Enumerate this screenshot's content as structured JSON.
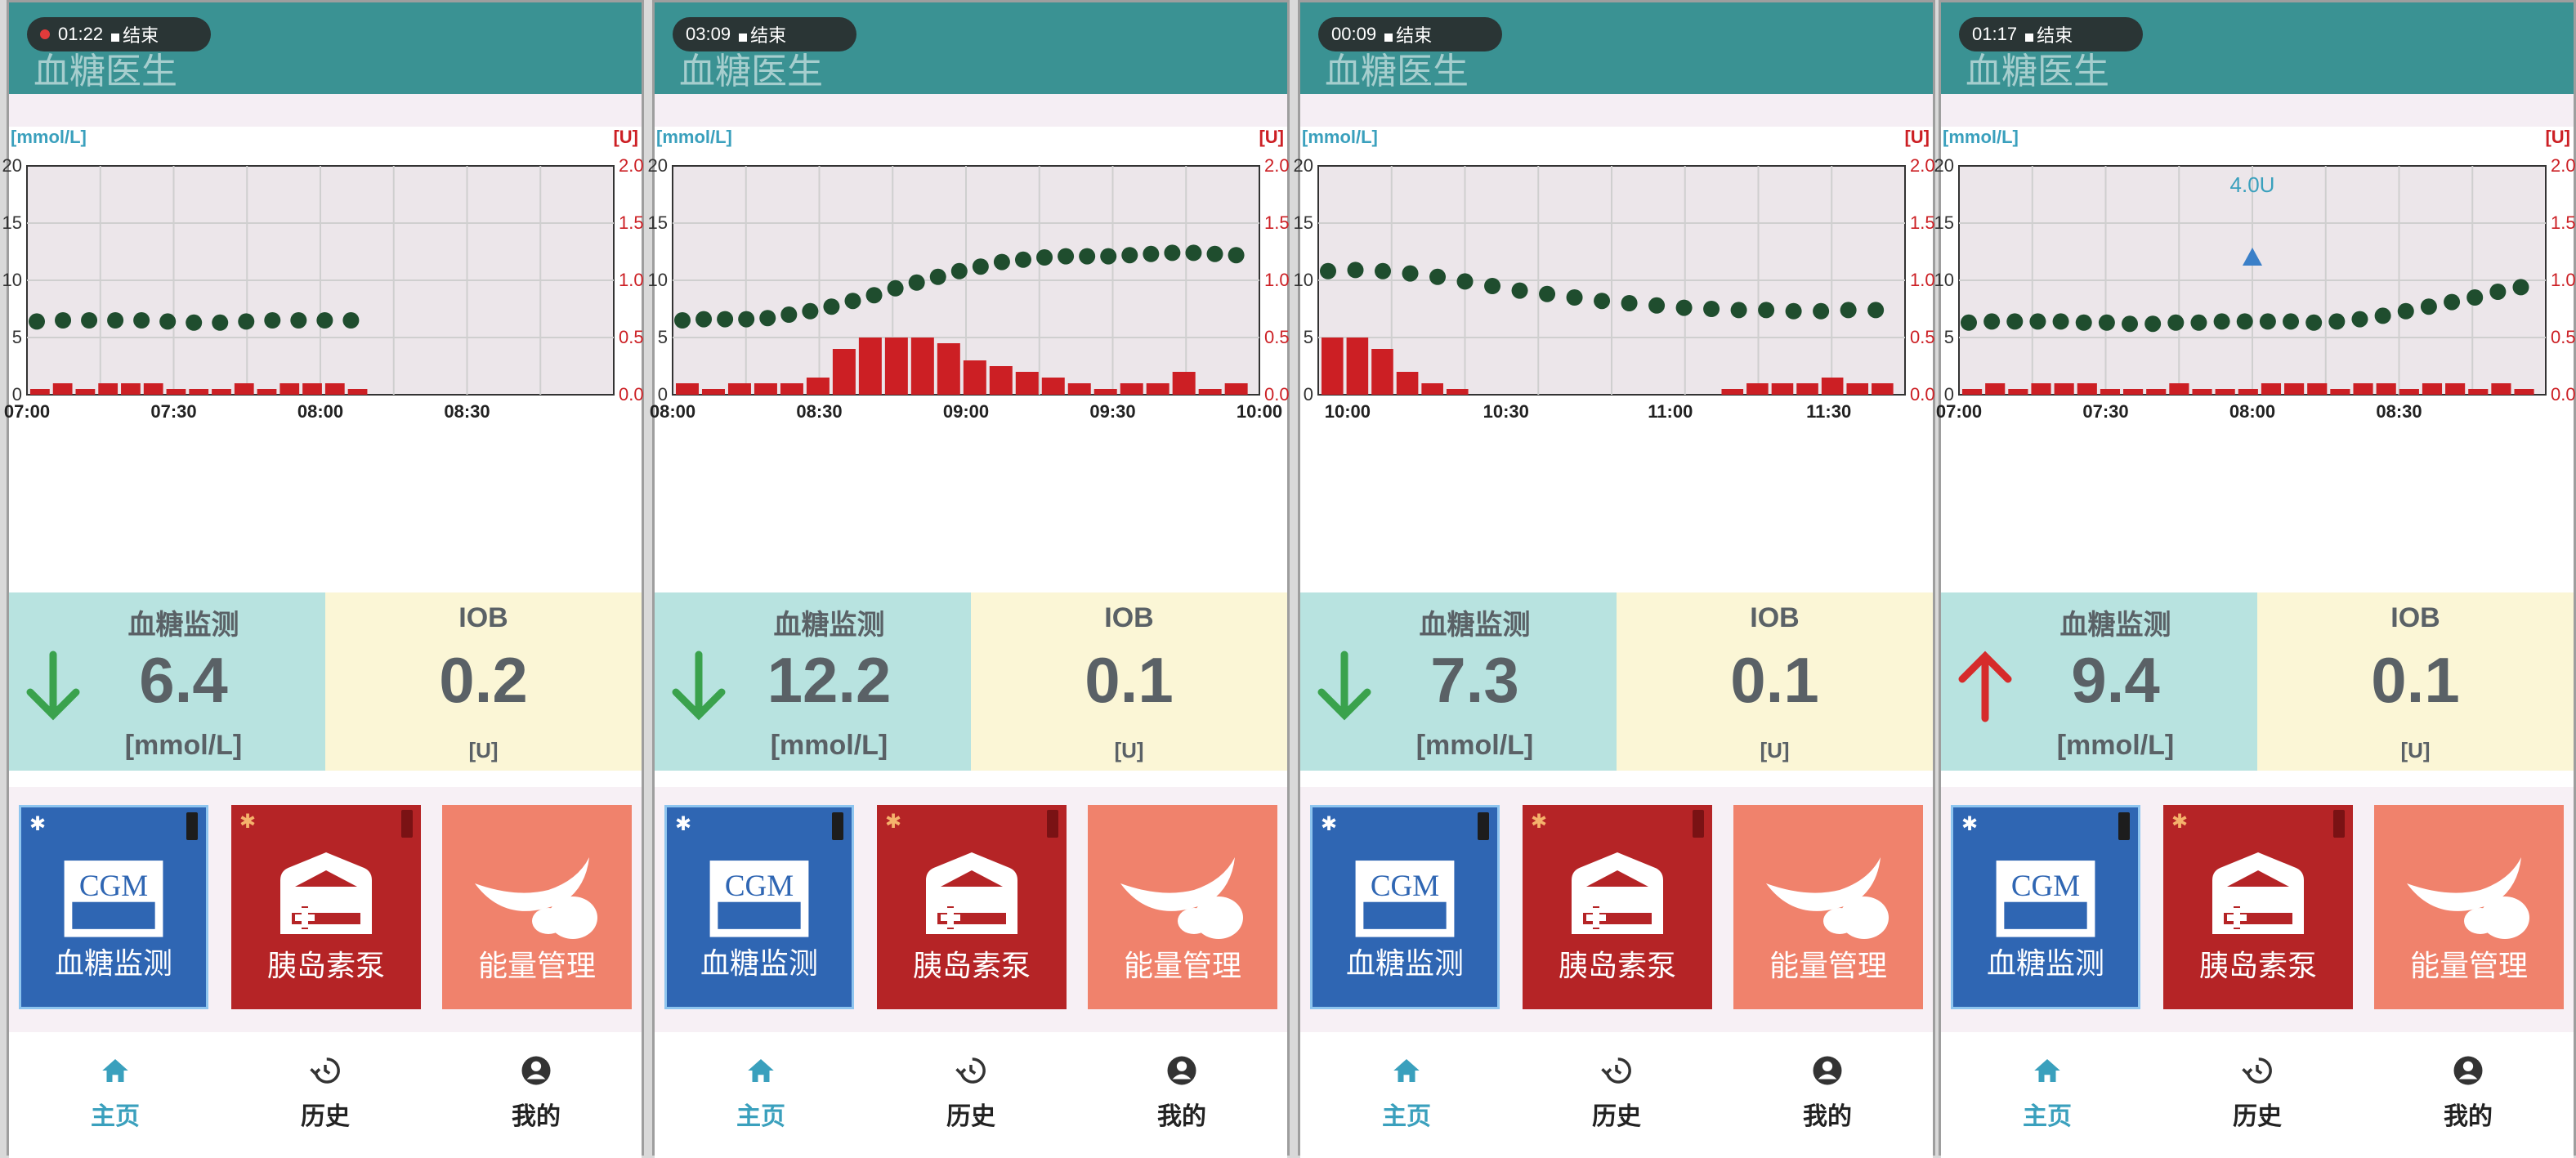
{
  "panels": [
    {
      "rec_time": "01:22",
      "rec_end": "结束",
      "rec_dot": true,
      "app_title": "血糖医生",
      "chart": {
        "left_unit": "[mmol/L]",
        "right_unit": "[U]",
        "x_ticks": [
          "07:00",
          "07:30",
          "08:00",
          "08:30"
        ],
        "x_tick_pos": [
          0,
          0.25,
          0.5,
          0.75
        ],
        "glucose": [
          6.4,
          6.5,
          6.5,
          6.5,
          6.5,
          6.4,
          6.3,
          6.3,
          6.4,
          6.5,
          6.5,
          6.5,
          6.5
        ],
        "insulin": [
          0.05,
          0.1,
          0.05,
          0.1,
          0.1,
          0.1,
          0.05,
          0.05,
          0.05,
          0.1,
          0.05,
          0.1,
          0.1,
          0.1,
          0.05
        ],
        "annotation": null
      },
      "info": {
        "title": "血糖监测",
        "value": "6.4",
        "unit": "[mmol/L]",
        "trend": "down",
        "iob_title": "IOB",
        "iob_value": "0.2",
        "iob_unit": "[U]"
      }
    },
    {
      "rec_time": "03:09",
      "rec_end": "结束",
      "rec_dot": false,
      "app_title": "血糖医生",
      "chart": {
        "left_unit": "[mmol/L]",
        "right_unit": "[U]",
        "x_ticks": [
          "08:00",
          "08:30",
          "09:00",
          "09:30",
          "10:00"
        ],
        "x_tick_pos": [
          0,
          0.25,
          0.5,
          0.75,
          1
        ],
        "glucose": [
          6.5,
          6.6,
          6.6,
          6.6,
          6.7,
          7.0,
          7.3,
          7.7,
          8.2,
          8.7,
          9.3,
          9.8,
          10.3,
          10.8,
          11.2,
          11.6,
          11.8,
          12.0,
          12.1,
          12.1,
          12.1,
          12.2,
          12.3,
          12.4,
          12.4,
          12.3,
          12.2
        ],
        "insulin": [
          0.1,
          0.05,
          0.1,
          0.1,
          0.1,
          0.15,
          0.4,
          0.5,
          0.5,
          0.5,
          0.45,
          0.3,
          0.25,
          0.2,
          0.15,
          0.1,
          0.05,
          0.1,
          0.1,
          0.2,
          0.05,
          0.1
        ],
        "annotation": null
      },
      "info": {
        "title": "血糖监测",
        "value": "12.2",
        "unit": "[mmol/L]",
        "trend": "down",
        "iob_title": "IOB",
        "iob_value": "0.1",
        "iob_unit": "[U]"
      }
    },
    {
      "rec_time": "00:09",
      "rec_end": "结束",
      "rec_dot": false,
      "app_title": "血糖医生",
      "chart": {
        "left_unit": "[mmol/L]",
        "right_unit": "[U]",
        "x_ticks": [
          "10:00",
          "10:30",
          "11:00",
          "11:30"
        ],
        "x_tick_pos": [
          0.05,
          0.32,
          0.6,
          0.87
        ],
        "glucose": [
          10.8,
          10.9,
          10.8,
          10.6,
          10.3,
          9.9,
          9.5,
          9.1,
          8.8,
          8.5,
          8.2,
          8.0,
          7.8,
          7.6,
          7.5,
          7.4,
          7.4,
          7.3,
          7.3,
          7.4,
          7.4
        ],
        "insulin": [
          0.5,
          0.5,
          0.4,
          0.2,
          0.1,
          0.05,
          0,
          0,
          0,
          0,
          0,
          0,
          0,
          0,
          0,
          0,
          0.05,
          0.1,
          0.1,
          0.1,
          0.15,
          0.1,
          0.1
        ],
        "annotation": null
      },
      "info": {
        "title": "血糖监测",
        "value": "7.3",
        "unit": "[mmol/L]",
        "trend": "down",
        "iob_title": "IOB",
        "iob_value": "0.1",
        "iob_unit": "[U]"
      }
    },
    {
      "rec_time": "01:17",
      "rec_end": "结束",
      "rec_dot": false,
      "app_title": "血糖医生",
      "chart": {
        "left_unit": "[mmol/L]",
        "right_unit": "[U]",
        "x_ticks": [
          "07:00",
          "07:30",
          "08:00",
          "08:30"
        ],
        "x_tick_pos": [
          0,
          0.25,
          0.5,
          0.75
        ],
        "glucose": [
          6.3,
          6.4,
          6.4,
          6.4,
          6.4,
          6.3,
          6.3,
          6.2,
          6.2,
          6.3,
          6.3,
          6.4,
          6.4,
          6.4,
          6.4,
          6.3,
          6.4,
          6.6,
          6.9,
          7.3,
          7.7,
          8.1,
          8.5,
          9.0,
          9.4
        ],
        "insulin": [
          0.05,
          0.1,
          0.05,
          0.1,
          0.1,
          0.1,
          0.05,
          0.05,
          0.05,
          0.1,
          0.05,
          0.05,
          0.05,
          0.1,
          0.1,
          0.1,
          0.05,
          0.1,
          0.1,
          0.05,
          0.1,
          0.1,
          0.05,
          0.1,
          0.05
        ],
        "annotation": {
          "label": "4.0U",
          "x_frac": 0.5,
          "y": 12
        }
      },
      "info": {
        "title": "血糖监测",
        "value": "9.4",
        "unit": "[mmol/L]",
        "trend": "up",
        "iob_title": "IOB",
        "iob_value": "0.1",
        "iob_unit": "[U]"
      }
    }
  ],
  "chart_common": {
    "y_left_ticks": [
      "0",
      "5",
      "10",
      "15",
      "20"
    ],
    "y_right_ticks": [
      "0.0",
      "0.5",
      "1.0",
      "1.5",
      "2.0"
    ],
    "y_left_max": 20,
    "y_right_max": 2.0,
    "glucose_color": "#1f4d2e",
    "insulin_color": "#cc1f24",
    "grid_color": "#cfcfcf",
    "plot_bg": "#ece6ea"
  },
  "tiles": {
    "cgm_badge": "CGM",
    "cgm_label": "血糖监测",
    "pump_label": "胰岛素泵",
    "energy_label": "能量管理"
  },
  "nav": {
    "home": "主页",
    "history": "历史",
    "mine": "我的"
  },
  "colors": {
    "appbar": "#3a9293",
    "down_arrow": "#3aa24d",
    "up_arrow": "#d62b2b",
    "active_nav": "#3aa0bd"
  }
}
